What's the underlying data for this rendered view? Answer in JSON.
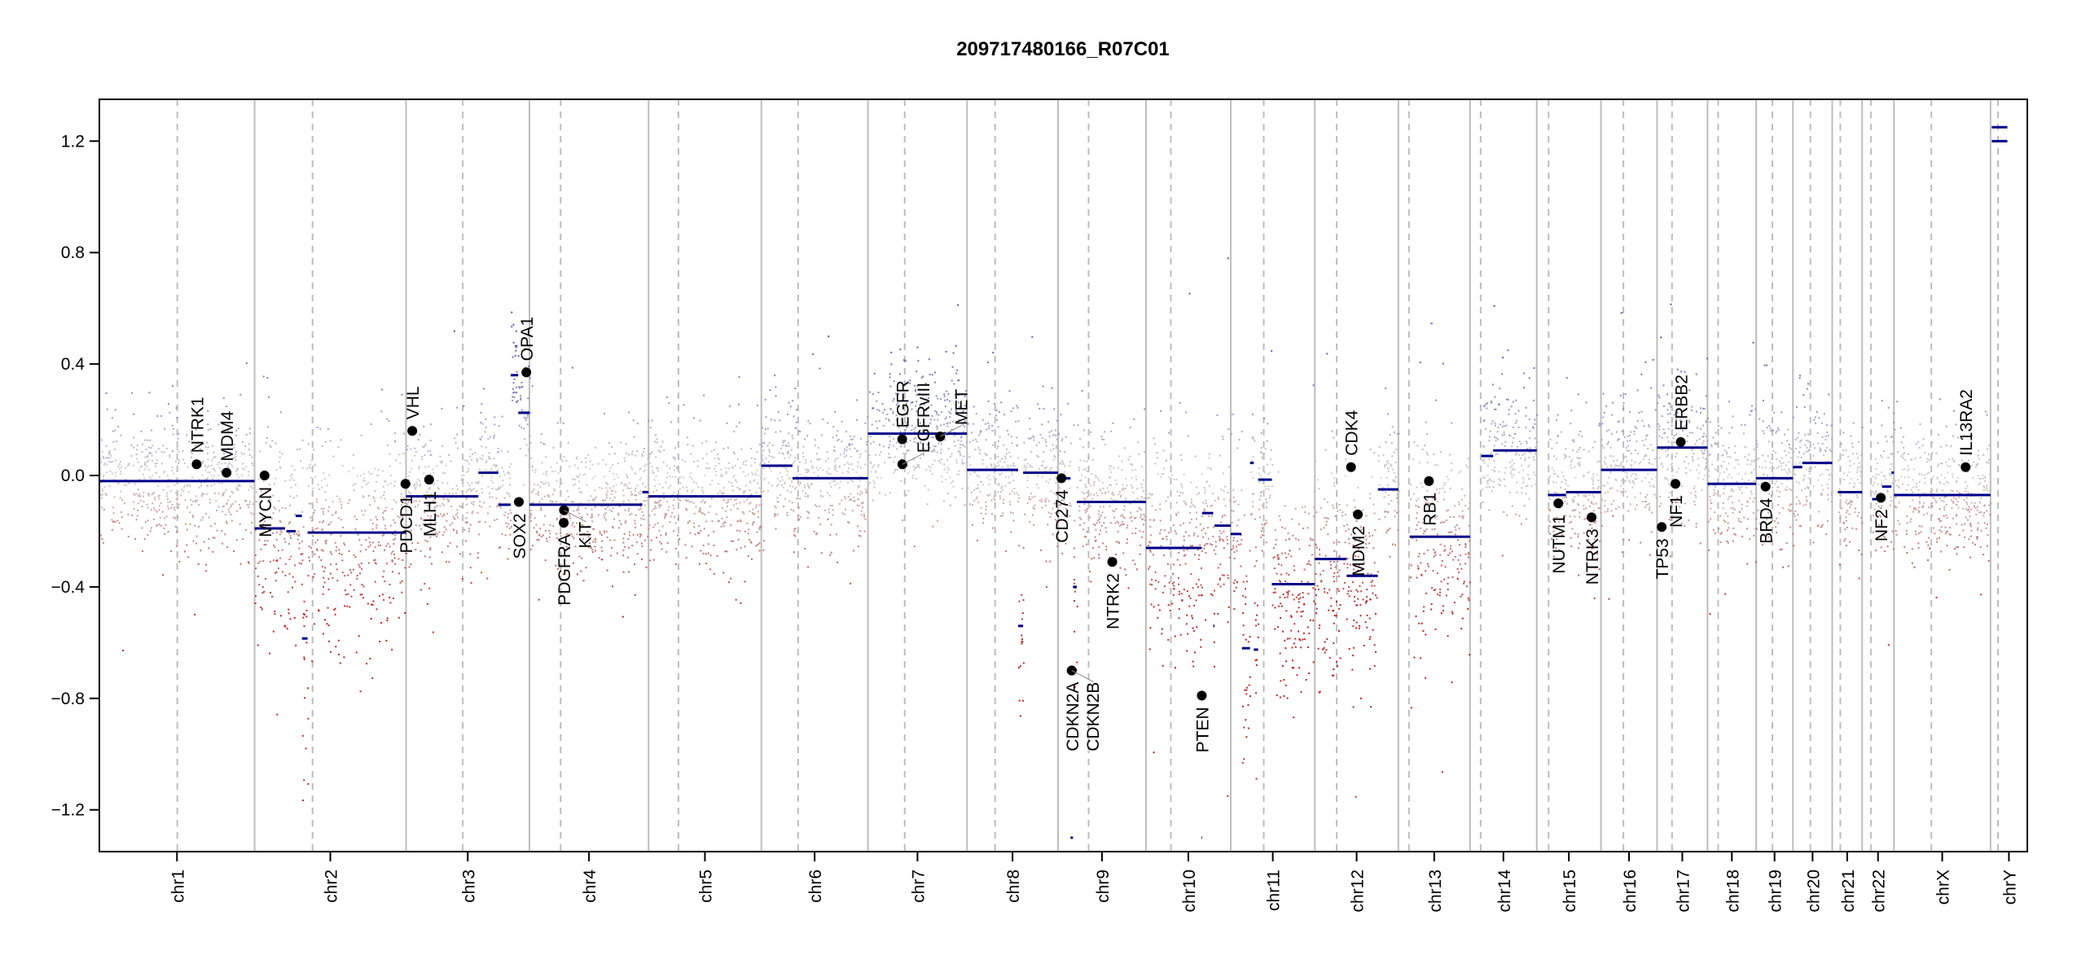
{
  "chart_data": {
    "type": "scatter",
    "title": "209717480166_R07C01",
    "xlabel": "",
    "ylabel": "",
    "ylim": [
      -1.35,
      1.35
    ],
    "yticks": [
      1.2,
      0.8,
      0.4,
      0.0,
      -0.4,
      -0.8,
      -1.2
    ],
    "ytick_labels": [
      "1.2",
      "0.8",
      "0.4",
      "0.0",
      "−0.4",
      "−0.8",
      "−1.2"
    ],
    "colors": {
      "segment": "#00008b",
      "gain": "#3a3aa6",
      "neutral": "#c8c8c8",
      "loss": "#b00000",
      "gene": "#000000",
      "boundary": "#bdbdbd",
      "centromere": "#bdbdbd"
    },
    "chromosomes": [
      {
        "name": "chr1",
        "length_mb": 249,
        "centromere_mb": 125
      },
      {
        "name": "chr2",
        "length_mb": 243,
        "centromere_mb": 93
      },
      {
        "name": "chr3",
        "length_mb": 198,
        "centromere_mb": 91
      },
      {
        "name": "chr4",
        "length_mb": 191,
        "centromere_mb": 50
      },
      {
        "name": "chr5",
        "length_mb": 181,
        "centromere_mb": 48
      },
      {
        "name": "chr6",
        "length_mb": 171,
        "centromere_mb": 59
      },
      {
        "name": "chr7",
        "length_mb": 159,
        "centromere_mb": 59
      },
      {
        "name": "chr8",
        "length_mb": 146,
        "centromere_mb": 45
      },
      {
        "name": "chr9",
        "length_mb": 141,
        "centromere_mb": 49
      },
      {
        "name": "chr10",
        "length_mb": 136,
        "centromere_mb": 40
      },
      {
        "name": "chr11",
        "length_mb": 135,
        "centromere_mb": 53
      },
      {
        "name": "chr12",
        "length_mb": 134,
        "centromere_mb": 35
      },
      {
        "name": "chr13",
        "length_mb": 115,
        "centromere_mb": 17
      },
      {
        "name": "chr14",
        "length_mb": 107,
        "centromere_mb": 17
      },
      {
        "name": "chr15",
        "length_mb": 103,
        "centromere_mb": 19
      },
      {
        "name": "chr16",
        "length_mb": 90,
        "centromere_mb": 36
      },
      {
        "name": "chr17",
        "length_mb": 81,
        "centromere_mb": 24
      },
      {
        "name": "chr18",
        "length_mb": 78,
        "centromere_mb": 17
      },
      {
        "name": "chr19",
        "length_mb": 59,
        "centromere_mb": 26
      },
      {
        "name": "chr20",
        "length_mb": 63,
        "centromere_mb": 28
      },
      {
        "name": "chr21",
        "length_mb": 48,
        "centromere_mb": 13
      },
      {
        "name": "chr22",
        "length_mb": 51,
        "centromere_mb": 14
      },
      {
        "name": "chrX",
        "length_mb": 155,
        "centromere_mb": 60
      },
      {
        "name": "chrY",
        "length_mb": 59,
        "centromere_mb": 12
      }
    ],
    "segments": [
      {
        "chr": "chr1",
        "start_mb": 0,
        "end_mb": 249,
        "value": -0.02
      },
      {
        "chr": "chr2",
        "start_mb": 0,
        "end_mb": 49,
        "value": -0.19
      },
      {
        "chr": "chr2",
        "start_mb": 51,
        "end_mb": 66,
        "value": -0.2
      },
      {
        "chr": "chr2",
        "start_mb": 66,
        "end_mb": 76,
        "value": -0.145
      },
      {
        "chr": "chr2",
        "start_mb": 76,
        "end_mb": 85,
        "value": -0.585
      },
      {
        "chr": "chr2",
        "start_mb": 85,
        "end_mb": 243,
        "value": -0.205
      },
      {
        "chr": "chr3",
        "start_mb": 0,
        "end_mb": 116,
        "value": -0.075
      },
      {
        "chr": "chr3",
        "start_mb": 116,
        "end_mb": 148,
        "value": 0.01
      },
      {
        "chr": "chr3",
        "start_mb": 148,
        "end_mb": 168,
        "value": -0.105
      },
      {
        "chr": "chr3",
        "start_mb": 168,
        "end_mb": 180,
        "value": 0.36
      },
      {
        "chr": "chr3",
        "start_mb": 180,
        "end_mb": 198,
        "value": 0.225
      },
      {
        "chr": "chr4",
        "start_mb": 0,
        "end_mb": 181,
        "value": -0.105
      },
      {
        "chr": "chr4",
        "start_mb": 181,
        "end_mb": 191,
        "value": -0.06
      },
      {
        "chr": "chr5",
        "start_mb": 0,
        "end_mb": 181,
        "value": -0.075
      },
      {
        "chr": "chr6",
        "start_mb": 0,
        "end_mb": 50,
        "value": 0.035
      },
      {
        "chr": "chr6",
        "start_mb": 50,
        "end_mb": 171,
        "value": -0.01
      },
      {
        "chr": "chr7",
        "start_mb": 0,
        "end_mb": 159,
        "value": 0.15
      },
      {
        "chr": "chr8",
        "start_mb": 0,
        "end_mb": 82,
        "value": 0.02
      },
      {
        "chr": "chr8",
        "start_mb": 82,
        "end_mb": 90,
        "value": -0.54
      },
      {
        "chr": "chr8",
        "start_mb": 90,
        "end_mb": 146,
        "value": 0.01
      },
      {
        "chr": "chr9",
        "start_mb": 0,
        "end_mb": 20,
        "value": -0.01
      },
      {
        "chr": "chr9",
        "start_mb": 20,
        "end_mb": 24,
        "value": -1.3
      },
      {
        "chr": "chr9",
        "start_mb": 24,
        "end_mb": 30,
        "value": -0.4
      },
      {
        "chr": "chr9",
        "start_mb": 30,
        "end_mb": 141,
        "value": -0.095
      },
      {
        "chr": "chr10",
        "start_mb": 0,
        "end_mb": 89,
        "value": -0.26
      },
      {
        "chr": "chr10",
        "start_mb": 89,
        "end_mb": 90,
        "value": -1.3
      },
      {
        "chr": "chr10",
        "start_mb": 90,
        "end_mb": 108,
        "value": -0.135
      },
      {
        "chr": "chr10",
        "start_mb": 108,
        "end_mb": 110,
        "value": -0.54
      },
      {
        "chr": "chr10",
        "start_mb": 110,
        "end_mb": 136,
        "value": -0.18
      },
      {
        "chr": "chr11",
        "start_mb": 0,
        "end_mb": 17,
        "value": -0.21
      },
      {
        "chr": "chr11",
        "start_mb": 18,
        "end_mb": 31,
        "value": -0.62
      },
      {
        "chr": "chr11",
        "start_mb": 31,
        "end_mb": 37,
        "value": 0.045
      },
      {
        "chr": "chr11",
        "start_mb": 37,
        "end_mb": 44,
        "value": -0.625
      },
      {
        "chr": "chr11",
        "start_mb": 44,
        "end_mb": 66,
        "value": -0.015
      },
      {
        "chr": "chr11",
        "start_mb": 66,
        "end_mb": 135,
        "value": -0.39
      },
      {
        "chr": "chr12",
        "start_mb": 0,
        "end_mb": 51,
        "value": -0.3
      },
      {
        "chr": "chr12",
        "start_mb": 51,
        "end_mb": 101,
        "value": -0.36
      },
      {
        "chr": "chr12",
        "start_mb": 101,
        "end_mb": 134,
        "value": -0.05
      },
      {
        "chr": "chr13",
        "start_mb": 18,
        "end_mb": 115,
        "value": -0.22
      },
      {
        "chr": "chr14",
        "start_mb": 18,
        "end_mb": 37,
        "value": 0.07
      },
      {
        "chr": "chr14",
        "start_mb": 37,
        "end_mb": 107,
        "value": 0.09
      },
      {
        "chr": "chr15",
        "start_mb": 18,
        "end_mb": 47,
        "value": -0.07
      },
      {
        "chr": "chr15",
        "start_mb": 47,
        "end_mb": 103,
        "value": -0.06
      },
      {
        "chr": "chr16",
        "start_mb": 0,
        "end_mb": 90,
        "value": 0.02
      },
      {
        "chr": "chr17",
        "start_mb": 0,
        "end_mb": 81,
        "value": 0.1
      },
      {
        "chr": "chr18",
        "start_mb": 0,
        "end_mb": 78,
        "value": -0.03
      },
      {
        "chr": "chr19",
        "start_mb": 0,
        "end_mb": 59,
        "value": -0.01
      },
      {
        "chr": "chr20",
        "start_mb": 0,
        "end_mb": 15,
        "value": 0.03
      },
      {
        "chr": "chr20",
        "start_mb": 15,
        "end_mb": 63,
        "value": 0.045
      },
      {
        "chr": "chr21",
        "start_mb": 9,
        "end_mb": 48,
        "value": -0.06
      },
      {
        "chr": "chr22",
        "start_mb": 16,
        "end_mb": 32,
        "value": -0.085
      },
      {
        "chr": "chr22",
        "start_mb": 32,
        "end_mb": 47,
        "value": -0.04
      },
      {
        "chr": "chr22",
        "start_mb": 47,
        "end_mb": 51,
        "value": 0.01
      },
      {
        "chr": "chrX",
        "start_mb": 0,
        "end_mb": 155,
        "value": -0.07
      },
      {
        "chr": "chrY",
        "start_mb": 2,
        "end_mb": 27,
        "value": 1.2
      },
      {
        "chr": "chrY",
        "start_mb": 2,
        "end_mb": 27,
        "value": 1.25
      }
    ],
    "genes": [
      {
        "name": "NTRK1",
        "chr": "chr1",
        "pos_mb": 156,
        "value": 0.04,
        "label": "above"
      },
      {
        "name": "MDM4",
        "chr": "chr1",
        "pos_mb": 204,
        "value": 0.01,
        "label": "above"
      },
      {
        "name": "MYCN",
        "chr": "chr2",
        "pos_mb": 16,
        "value": 0.0,
        "label": "below"
      },
      {
        "name": "PDCD1",
        "chr": "chr2",
        "pos_mb": 242,
        "value": -0.03,
        "label": "below"
      },
      {
        "name": "VHL",
        "chr": "chr3",
        "pos_mb": 10,
        "value": 0.16,
        "label": "above"
      },
      {
        "name": "MLH1",
        "chr": "chr3",
        "pos_mb": 37,
        "value": -0.015,
        "label": "below"
      },
      {
        "name": "SOX2",
        "chr": "chr3",
        "pos_mb": 181,
        "value": -0.095,
        "label": "below"
      },
      {
        "name": "OPA1",
        "chr": "chr3",
        "pos_mb": 193,
        "value": 0.37,
        "label": "above"
      },
      {
        "name": "PDGFRA",
        "chr": "chr4",
        "pos_mb": 55,
        "value": -0.17,
        "label": "below"
      },
      {
        "name": "KIT",
        "chr": "chr4",
        "pos_mb": 55.5,
        "value": -0.125,
        "label": "below"
      },
      {
        "name": "EGFR",
        "chr": "chr7",
        "pos_mb": 55,
        "value": 0.13,
        "label": "above"
      },
      {
        "name": "EGFRvIII",
        "chr": "chr7",
        "pos_mb": 55.2,
        "value": 0.04,
        "label": "above"
      },
      {
        "name": "MET",
        "chr": "chr7",
        "pos_mb": 116,
        "value": 0.14,
        "label": "above"
      },
      {
        "name": "CD274",
        "chr": "chr9",
        "pos_mb": 5.5,
        "value": -0.01,
        "label": "below"
      },
      {
        "name": "CDKN2A",
        "chr": "chr9",
        "pos_mb": 21.9,
        "value": -0.7,
        "label": "below"
      },
      {
        "name": "CDKN2B",
        "chr": "chr9",
        "pos_mb": 22.0,
        "value": -0.7,
        "label": "below"
      },
      {
        "name": "NTRK2",
        "chr": "chr9",
        "pos_mb": 87,
        "value": -0.31,
        "label": "below"
      },
      {
        "name": "PTEN",
        "chr": "chr10",
        "pos_mb": 89.6,
        "value": -0.79,
        "label": "below"
      },
      {
        "name": "CDK4",
        "chr": "chr12",
        "pos_mb": 58,
        "value": 0.03,
        "label": "above"
      },
      {
        "name": "MDM2",
        "chr": "chr12",
        "pos_mb": 69,
        "value": -0.14,
        "label": "below"
      },
      {
        "name": "RB1",
        "chr": "chr13",
        "pos_mb": 49,
        "value": -0.02,
        "label": "below"
      },
      {
        "name": "NUTM1",
        "chr": "chr15",
        "pos_mb": 34.6,
        "value": -0.1,
        "label": "below"
      },
      {
        "name": "NTRK3",
        "chr": "chr15",
        "pos_mb": 88,
        "value": -0.15,
        "label": "below"
      },
      {
        "name": "TP53",
        "chr": "chr17",
        "pos_mb": 7.5,
        "value": -0.185,
        "label": "below"
      },
      {
        "name": "NF1",
        "chr": "chr17",
        "pos_mb": 29.5,
        "value": -0.03,
        "label": "below"
      },
      {
        "name": "ERBB2",
        "chr": "chr17",
        "pos_mb": 38,
        "value": 0.12,
        "label": "above"
      },
      {
        "name": "BRD4",
        "chr": "chr19",
        "pos_mb": 15,
        "value": -0.04,
        "label": "below"
      },
      {
        "name": "NF2",
        "chr": "chr22",
        "pos_mb": 30,
        "value": -0.08,
        "label": "below"
      },
      {
        "name": "IL13RA2",
        "chr": "chrX",
        "pos_mb": 115,
        "value": 0.03,
        "label": "above"
      }
    ]
  }
}
